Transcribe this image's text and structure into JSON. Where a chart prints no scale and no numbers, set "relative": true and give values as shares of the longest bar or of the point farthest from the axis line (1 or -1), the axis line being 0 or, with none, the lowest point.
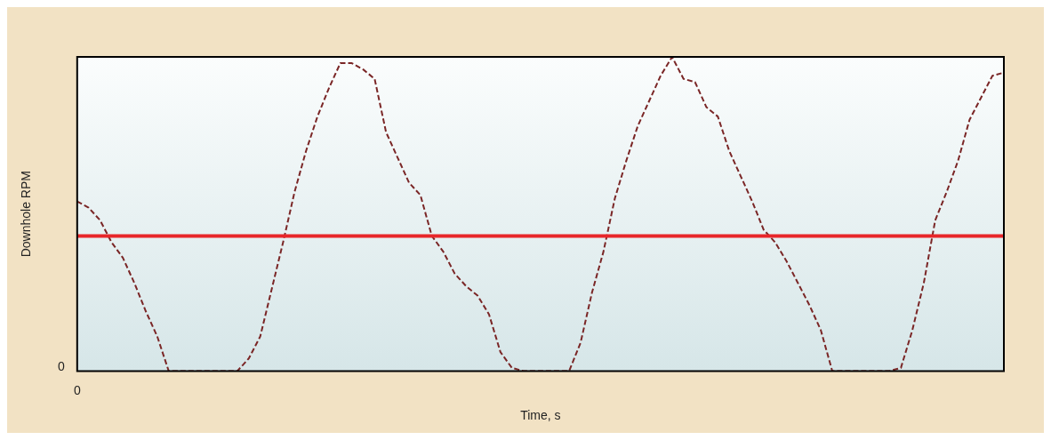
{
  "chart_data": {
    "type": "line",
    "xlabel": "Time, s",
    "ylabel": "Downhole RPM",
    "relative": true,
    "line_style": "dashed",
    "marker": "none",
    "grid": false,
    "legend": false,
    "categories": [
      null,
      null,
      null,
      null,
      null,
      null,
      null,
      null,
      null,
      null,
      null,
      null,
      null,
      null,
      null,
      null,
      null,
      null,
      null,
      null,
      null,
      null,
      null,
      null,
      null,
      null,
      null,
      null,
      null,
      null,
      null,
      null,
      null,
      null,
      null,
      null,
      null,
      null,
      null,
      null,
      null,
      null,
      null,
      null,
      null,
      null,
      null,
      null,
      null,
      null,
      null,
      null,
      null,
      null,
      null,
      null,
      null,
      null,
      null,
      null,
      null,
      null,
      null,
      null,
      null,
      null,
      null,
      null,
      null,
      null,
      null,
      null,
      null,
      null,
      null,
      null,
      null,
      null,
      null,
      null,
      null,
      null
    ],
    "series": [
      {
        "color": "#7a2626",
        "values": [
          0.54,
          0.52,
          0.48,
          0.41,
          0.36,
          0.28,
          0.19,
          0.11,
          0,
          0,
          0,
          0,
          0,
          0,
          0,
          0.04,
          0.11,
          0.26,
          0.41,
          0.57,
          0.7,
          0.81,
          0.9,
          0.98,
          0.98,
          0.96,
          0.93,
          0.76,
          0.68,
          0.6,
          0.56,
          0.43,
          0.38,
          0.31,
          0.27,
          0.24,
          0.18,
          0.06,
          0.01,
          0,
          0,
          0,
          0,
          0,
          0.09,
          0.25,
          0.38,
          0.55,
          0.67,
          0.78,
          0.86,
          0.94,
          1,
          0.93,
          0.92,
          0.84,
          0.81,
          0.7,
          0.62,
          0.54,
          0.45,
          0.41,
          0.35,
          0.28,
          0.21,
          0.13,
          0,
          0,
          0,
          0,
          0,
          0,
          0.01,
          0.13,
          0.28,
          0.48,
          0.57,
          0.67,
          0.8,
          0.87,
          0.94,
          0.95
        ]
      }
    ],
    "ref_lines": [
      {
        "axis": "y",
        "value": 0.43,
        "color": "#e8262a",
        "line_style": "solid"
      }
    ],
    "annotations": [
      "0",
      "0"
    ]
  }
}
